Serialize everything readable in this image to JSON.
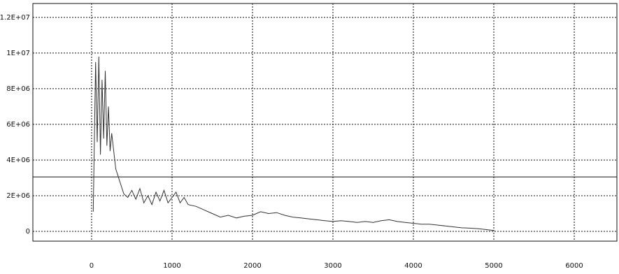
{
  "chart_data": {
    "type": "line",
    "x": [
      20,
      50,
      70,
      90,
      110,
      130,
      150,
      170,
      190,
      210,
      230,
      250,
      300,
      400,
      450,
      500,
      550,
      600,
      650,
      700,
      750,
      800,
      850,
      900,
      950,
      1000,
      1050,
      1100,
      1150,
      1200,
      1300,
      1400,
      1500,
      1600,
      1700,
      1800,
      1900,
      2000,
      2100,
      2200,
      2300,
      2400,
      2500,
      2600,
      2700,
      2800,
      2900,
      3000,
      3100,
      3200,
      3300,
      3400,
      3500,
      3600,
      3700,
      3800,
      3900,
      4000,
      4100,
      4200,
      4300,
      4400,
      4500,
      4600,
      4700,
      4800,
      4900,
      5000
    ],
    "series": [
      {
        "color": "#333333",
        "values": [
          1100000,
          9500000,
          5000000,
          9800000,
          4300000,
          8500000,
          5200000,
          9000000,
          4800000,
          7000000,
          4500000,
          5500000,
          3500000,
          2100000,
          1900000,
          2300000,
          1800000,
          2400000,
          1600000,
          2000000,
          1500000,
          2200000,
          1700000,
          2300000,
          1600000,
          1900000,
          2200000,
          1600000,
          1900000,
          1500000,
          1400000,
          1200000,
          1000000,
          800000,
          900000,
          750000,
          850000,
          900000,
          1100000,
          1000000,
          1050000,
          900000,
          800000,
          750000,
          700000,
          650000,
          600000,
          550000,
          600000,
          550000,
          500000,
          550000,
          500000,
          600000,
          650000,
          550000,
          500000,
          450000,
          400000,
          400000,
          350000,
          300000,
          250000,
          200000,
          180000,
          150000,
          100000,
          50000
        ]
      }
    ],
    "xlim": [
      -730,
      6530
    ],
    "xticks": [
      0,
      1000,
      2000,
      3000,
      4000,
      5000,
      6000
    ],
    "ylim": [
      -550000,
      12780000
    ],
    "yticks": [
      0,
      {
        "value": 2000000,
        "label": "2E+06"
      },
      {
        "value": 4000000,
        "label": "4E+06"
      },
      {
        "value": 6000000,
        "label": "6E+06"
      },
      {
        "value": 8000000,
        "label": "8E+06"
      },
      {
        "value": 10000000,
        "label": "1E+07"
      },
      {
        "value": 12000000,
        "label": "1.2E+07"
      }
    ],
    "reference_line": 3050000,
    "grid": true
  }
}
